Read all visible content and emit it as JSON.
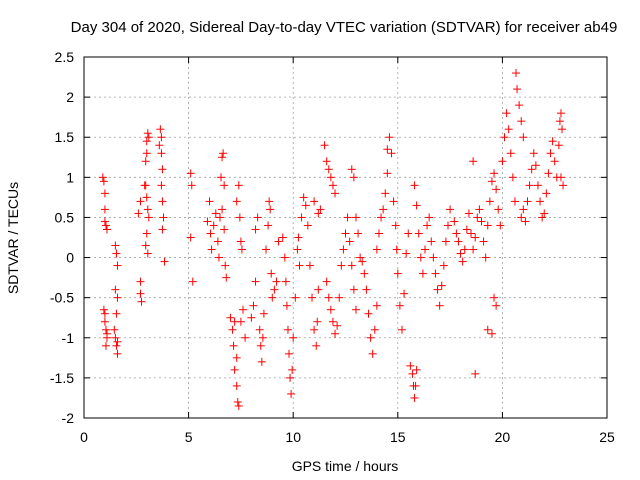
{
  "chart_data": {
    "type": "scatter",
    "title": "Day 304 of 2020, Sidereal Day-to-day VTEC variation (SDTVAR) for receiver ab49",
    "xlabel": "GPS time / hours",
    "ylabel": "SDTVAR / TECUs",
    "xlim": [
      0,
      25
    ],
    "ylim": [
      -2,
      2.5
    ],
    "xticks": [
      "0",
      "5",
      "10",
      "15",
      "20",
      "25"
    ],
    "yticks": [
      "-2",
      "-1.5",
      "-1",
      "-0.5",
      "0",
      "0.5",
      "1",
      "1.5",
      "2",
      "2.5"
    ],
    "grid": true,
    "marker": "+",
    "series": [
      {
        "name": "SDTVAR",
        "color": "#ff0000",
        "points": [
          [
            0.9,
            1.0
          ],
          [
            0.95,
            0.95
          ],
          [
            1.0,
            0.8
          ],
          [
            1.0,
            0.6
          ],
          [
            1.0,
            0.45
          ],
          [
            1.05,
            0.4
          ],
          [
            1.1,
            0.35
          ],
          [
            0.95,
            -0.65
          ],
          [
            1.0,
            -0.7
          ],
          [
            1.0,
            -0.8
          ],
          [
            1.05,
            -0.9
          ],
          [
            1.1,
            -1.0
          ],
          [
            1.05,
            -1.1
          ],
          [
            1.1,
            -0.95
          ],
          [
            1.5,
            0.15
          ],
          [
            1.55,
            0.05
          ],
          [
            1.6,
            -0.1
          ],
          [
            1.5,
            -0.4
          ],
          [
            1.6,
            -0.5
          ],
          [
            1.55,
            -0.7
          ],
          [
            1.45,
            -0.9
          ],
          [
            1.5,
            -1.0
          ],
          [
            1.55,
            -1.1
          ],
          [
            1.6,
            -1.2
          ],
          [
            1.6,
            -1.05
          ],
          [
            2.6,
            0.55
          ],
          [
            2.7,
            0.7
          ],
          [
            2.7,
            -0.3
          ],
          [
            2.7,
            -0.45
          ],
          [
            2.75,
            -0.55
          ],
          [
            2.9,
            0.9
          ],
          [
            2.95,
            1.2
          ],
          [
            3.0,
            1.45
          ],
          [
            3.05,
            1.55
          ],
          [
            3.1,
            1.5
          ],
          [
            3.0,
            1.3
          ],
          [
            2.95,
            0.9
          ],
          [
            3.0,
            0.75
          ],
          [
            3.05,
            0.6
          ],
          [
            3.1,
            0.5
          ],
          [
            3.0,
            0.3
          ],
          [
            2.95,
            0.15
          ],
          [
            3.05,
            0.05
          ],
          [
            3.6,
            1.4
          ],
          [
            3.65,
            1.6
          ],
          [
            3.7,
            1.5
          ],
          [
            3.7,
            1.3
          ],
          [
            3.75,
            1.1
          ],
          [
            3.7,
            0.9
          ],
          [
            3.75,
            0.7
          ],
          [
            3.8,
            0.5
          ],
          [
            3.75,
            0.35
          ],
          [
            3.85,
            -0.05
          ],
          [
            5.1,
            1.05
          ],
          [
            5.15,
            0.9
          ],
          [
            5.1,
            0.25
          ],
          [
            5.2,
            -0.3
          ],
          [
            5.9,
            0.45
          ],
          [
            6.0,
            0.7
          ],
          [
            6.05,
            0.3
          ],
          [
            6.1,
            0.1
          ],
          [
            6.2,
            0.4
          ],
          [
            6.3,
            0.55
          ],
          [
            6.4,
            0.2
          ],
          [
            6.45,
            0.0
          ],
          [
            6.5,
            0.5
          ],
          [
            6.55,
            1.0
          ],
          [
            6.6,
            1.25
          ],
          [
            6.65,
            1.3
          ],
          [
            6.7,
            0.9
          ],
          [
            6.7,
            0.35
          ],
          [
            6.75,
            -0.1
          ],
          [
            6.8,
            -0.25
          ],
          [
            6.6,
            0.6
          ],
          [
            7.0,
            -0.75
          ],
          [
            7.1,
            -0.9
          ],
          [
            7.15,
            -1.1
          ],
          [
            7.2,
            -1.4
          ],
          [
            7.3,
            -1.6
          ],
          [
            7.35,
            -1.8
          ],
          [
            7.4,
            -1.85
          ],
          [
            7.3,
            -1.25
          ],
          [
            7.2,
            -0.8
          ],
          [
            7.3,
            0.7
          ],
          [
            7.4,
            0.9
          ],
          [
            7.45,
            0.5
          ],
          [
            7.5,
            0.2
          ],
          [
            7.55,
            0.1
          ],
          [
            7.5,
            -0.8
          ],
          [
            7.6,
            -0.65
          ],
          [
            7.7,
            -1.0
          ],
          [
            8.0,
            -0.75
          ],
          [
            8.1,
            -0.6
          ],
          [
            8.2,
            -0.3
          ],
          [
            8.2,
            0.35
          ],
          [
            8.3,
            0.5
          ],
          [
            8.4,
            -0.9
          ],
          [
            8.45,
            -1.1
          ],
          [
            8.5,
            -1.3
          ],
          [
            8.55,
            -1.0
          ],
          [
            8.6,
            -0.7
          ],
          [
            8.7,
            0.1
          ],
          [
            8.8,
            0.4
          ],
          [
            8.85,
            0.7
          ],
          [
            8.9,
            0.6
          ],
          [
            8.95,
            -0.2
          ],
          [
            9.0,
            -0.5
          ],
          [
            9.1,
            -0.4
          ],
          [
            9.2,
            -0.3
          ],
          [
            9.3,
            0.2
          ],
          [
            9.5,
            0.25
          ],
          [
            9.6,
            0.0
          ],
          [
            9.65,
            -0.3
          ],
          [
            9.7,
            -0.6
          ],
          [
            9.75,
            -0.9
          ],
          [
            9.8,
            -1.2
          ],
          [
            9.85,
            -1.5
          ],
          [
            9.9,
            -1.7
          ],
          [
            9.95,
            -1.4
          ],
          [
            10.0,
            -1.0
          ],
          [
            10.1,
            -0.5
          ],
          [
            10.2,
            0.1
          ],
          [
            10.25,
            0.25
          ],
          [
            10.3,
            -0.1
          ],
          [
            10.4,
            0.5
          ],
          [
            10.5,
            0.75
          ],
          [
            10.6,
            0.65
          ],
          [
            10.7,
            0.4
          ],
          [
            10.8,
            -0.1
          ],
          [
            10.9,
            -0.5
          ],
          [
            11.0,
            -0.9
          ],
          [
            11.1,
            -1.1
          ],
          [
            11.15,
            -0.8
          ],
          [
            11.2,
            -0.4
          ],
          [
            11.0,
            0.7
          ],
          [
            11.2,
            0.55
          ],
          [
            11.3,
            0.6
          ],
          [
            11.5,
            1.4
          ],
          [
            11.6,
            1.2
          ],
          [
            11.7,
            1.1
          ],
          [
            11.8,
            1.0
          ],
          [
            11.9,
            0.9
          ],
          [
            12.0,
            0.8
          ],
          [
            11.6,
            -0.3
          ],
          [
            11.7,
            -0.5
          ],
          [
            11.8,
            -0.65
          ],
          [
            11.9,
            -0.8
          ],
          [
            12.0,
            -0.95
          ],
          [
            12.1,
            -0.85
          ],
          [
            12.2,
            -0.5
          ],
          [
            12.3,
            -0.1
          ],
          [
            12.4,
            0.1
          ],
          [
            12.5,
            0.3
          ],
          [
            12.6,
            0.5
          ],
          [
            12.7,
            0.2
          ],
          [
            12.8,
            -0.1
          ],
          [
            12.9,
            -0.4
          ],
          [
            13.0,
            -0.65
          ],
          [
            12.8,
            1.1
          ],
          [
            12.9,
            1.0
          ],
          [
            13.0,
            0.5
          ],
          [
            13.1,
            0.3
          ],
          [
            13.2,
            0.0
          ],
          [
            13.3,
            -0.05
          ],
          [
            13.4,
            -0.2
          ],
          [
            13.5,
            -0.4
          ],
          [
            13.6,
            -0.7
          ],
          [
            13.7,
            -1.0
          ],
          [
            13.8,
            -1.2
          ],
          [
            13.9,
            -0.9
          ],
          [
            14.0,
            -0.6
          ],
          [
            14.0,
            0.1
          ],
          [
            14.1,
            0.3
          ],
          [
            14.2,
            0.5
          ],
          [
            14.3,
            0.6
          ],
          [
            14.4,
            0.8
          ],
          [
            14.5,
            1.05
          ],
          [
            14.5,
            1.35
          ],
          [
            14.6,
            1.5
          ],
          [
            14.7,
            1.3
          ],
          [
            14.8,
            0.7
          ],
          [
            14.9,
            0.4
          ],
          [
            14.95,
            0.1
          ],
          [
            15.0,
            -0.2
          ],
          [
            15.1,
            -0.6
          ],
          [
            15.2,
            -0.9
          ],
          [
            15.3,
            -0.45
          ],
          [
            15.4,
            0.05
          ],
          [
            15.5,
            0.3
          ],
          [
            15.6,
            -1.35
          ],
          [
            15.7,
            -1.45
          ],
          [
            15.75,
            -1.6
          ],
          [
            15.8,
            -1.75
          ],
          [
            15.85,
            -1.6
          ],
          [
            15.9,
            -1.4
          ],
          [
            15.8,
            0.9
          ],
          [
            15.9,
            0.65
          ],
          [
            16.0,
            0.3
          ],
          [
            16.1,
            0.0
          ],
          [
            16.2,
            -0.2
          ],
          [
            16.3,
            0.1
          ],
          [
            16.4,
            0.4
          ],
          [
            16.5,
            0.5
          ],
          [
            16.6,
            0.2
          ],
          [
            16.7,
            0.0
          ],
          [
            16.8,
            -0.2
          ],
          [
            16.9,
            -0.4
          ],
          [
            17.0,
            -0.6
          ],
          [
            17.1,
            -0.35
          ],
          [
            17.2,
            -0.1
          ],
          [
            17.3,
            0.2
          ],
          [
            17.4,
            0.4
          ],
          [
            17.5,
            0.6
          ],
          [
            17.7,
            0.45
          ],
          [
            17.8,
            0.3
          ],
          [
            17.9,
            0.2
          ],
          [
            18.0,
            0.05
          ],
          [
            18.1,
            -0.05
          ],
          [
            18.2,
            0.1
          ],
          [
            18.3,
            0.35
          ],
          [
            18.4,
            0.55
          ],
          [
            18.5,
            0.3
          ],
          [
            18.6,
            0.1
          ],
          [
            18.7,
            0.25
          ],
          [
            18.8,
            0.5
          ],
          [
            18.9,
            0.6
          ],
          [
            19.0,
            0.45
          ],
          [
            19.1,
            0.2
          ],
          [
            19.2,
            0.0
          ],
          [
            19.3,
            0.4
          ],
          [
            19.4,
            0.7
          ],
          [
            19.5,
            0.95
          ],
          [
            19.6,
            1.05
          ],
          [
            19.7,
            0.85
          ],
          [
            19.8,
            0.6
          ],
          [
            19.9,
            0.4
          ],
          [
            18.6,
            1.2
          ],
          [
            18.7,
            -1.45
          ],
          [
            19.3,
            -0.9
          ],
          [
            19.5,
            -0.95
          ],
          [
            19.6,
            -0.5
          ],
          [
            19.7,
            -0.6
          ],
          [
            20.0,
            1.2
          ],
          [
            20.1,
            1.5
          ],
          [
            20.2,
            1.8
          ],
          [
            20.3,
            1.6
          ],
          [
            20.4,
            1.3
          ],
          [
            20.5,
            1.0
          ],
          [
            20.6,
            0.7
          ],
          [
            20.65,
            2.3
          ],
          [
            20.7,
            2.1
          ],
          [
            20.8,
            1.9
          ],
          [
            20.9,
            1.7
          ],
          [
            21.0,
            1.5
          ],
          [
            20.9,
            0.5
          ],
          [
            21.0,
            0.6
          ],
          [
            21.1,
            0.45
          ],
          [
            21.2,
            0.7
          ],
          [
            21.3,
            0.9
          ],
          [
            21.4,
            1.1
          ],
          [
            21.5,
            1.3
          ],
          [
            21.6,
            1.15
          ],
          [
            21.7,
            0.9
          ],
          [
            21.8,
            0.7
          ],
          [
            21.9,
            0.5
          ],
          [
            22.0,
            0.55
          ],
          [
            22.1,
            0.8
          ],
          [
            22.2,
            1.05
          ],
          [
            22.3,
            1.3
          ],
          [
            22.4,
            1.45
          ],
          [
            22.5,
            1.2
          ],
          [
            22.6,
            1.0
          ],
          [
            22.7,
            1.4
          ],
          [
            22.75,
            1.7
          ],
          [
            22.8,
            1.8
          ],
          [
            22.85,
            1.6
          ],
          [
            22.8,
            1.0
          ],
          [
            22.9,
            0.9
          ]
        ]
      }
    ]
  }
}
